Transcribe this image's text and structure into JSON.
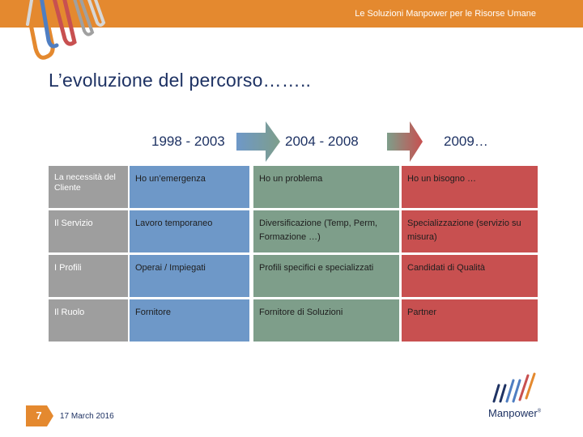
{
  "header": {
    "title": "Le Soluzioni Manpower per le Risorse Umane"
  },
  "slide": {
    "title": "L’evoluzione del percorso……..",
    "page_number": "7",
    "date": "17 March 2016"
  },
  "periods": [
    "1998 - 2003",
    "2004 - 2008",
    "2009…"
  ],
  "rows": [
    {
      "label": "La necessità del Cliente",
      "cells": [
        "Ho un’emergenza",
        "Ho un problema",
        "Ho un bisogno …"
      ]
    },
    {
      "label": "Il Servizio",
      "cells": [
        "Lavoro temporaneo",
        "Diversificazione (Temp, Perm, Formazione …)",
        "Specializzazione (servizio su misura)"
      ]
    },
    {
      "label": "I Profili",
      "cells": [
        "Operai / Impiegati",
        "Profili specifici e specializzati",
        "Candidati di Qualità"
      ]
    },
    {
      "label": "Il Ruolo",
      "cells": [
        "Fornitore",
        "Fornitore di Soluzioni",
        "Partner"
      ]
    }
  ],
  "logo": {
    "text": "Manpower",
    "mark": "®"
  },
  "colors": {
    "header_bar": "#e4892f",
    "label_column": "#9e9e9e",
    "period_1": "#6e98c8",
    "period_2": "#7e9e8a",
    "period_3": "#c85050",
    "title": "#1e3263"
  },
  "icons": [
    "paperclip-decoration",
    "manpower-logo-icon",
    "page-badge-icon",
    "arrow-right-icon"
  ]
}
